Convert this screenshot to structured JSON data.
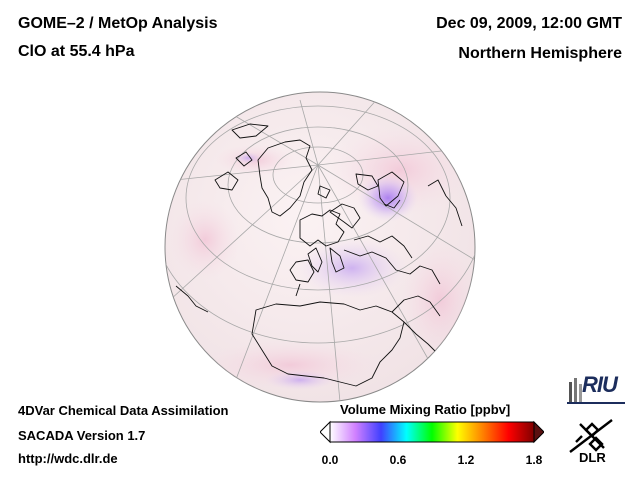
{
  "header": {
    "title_line1": "GOME–2 / MetOp Analysis",
    "title_line2": "ClO at 55.4 hPa",
    "date": "Dec 09, 2009, 12:00 GMT",
    "region": "Northern Hemisphere"
  },
  "footer": {
    "line1": "4DVar Chemical Data Assimilation",
    "line2": "SACADA Version 1.7",
    "line3": "http://wdc.dlr.de"
  },
  "colorbar": {
    "title": "Volume Mixing Ratio [ppbv]",
    "min": 0.0,
    "max": 1.8,
    "ticks": [
      "0.0",
      "0.6",
      "1.2",
      "1.8"
    ],
    "colors": [
      "#ffffff",
      "#d080ff",
      "#4040ff",
      "#00ffff",
      "#00ff00",
      "#ffff00",
      "#ff8000",
      "#ff0000",
      "#800000"
    ]
  },
  "logos": {
    "riu": "RIU",
    "dlr": "DLR"
  }
}
